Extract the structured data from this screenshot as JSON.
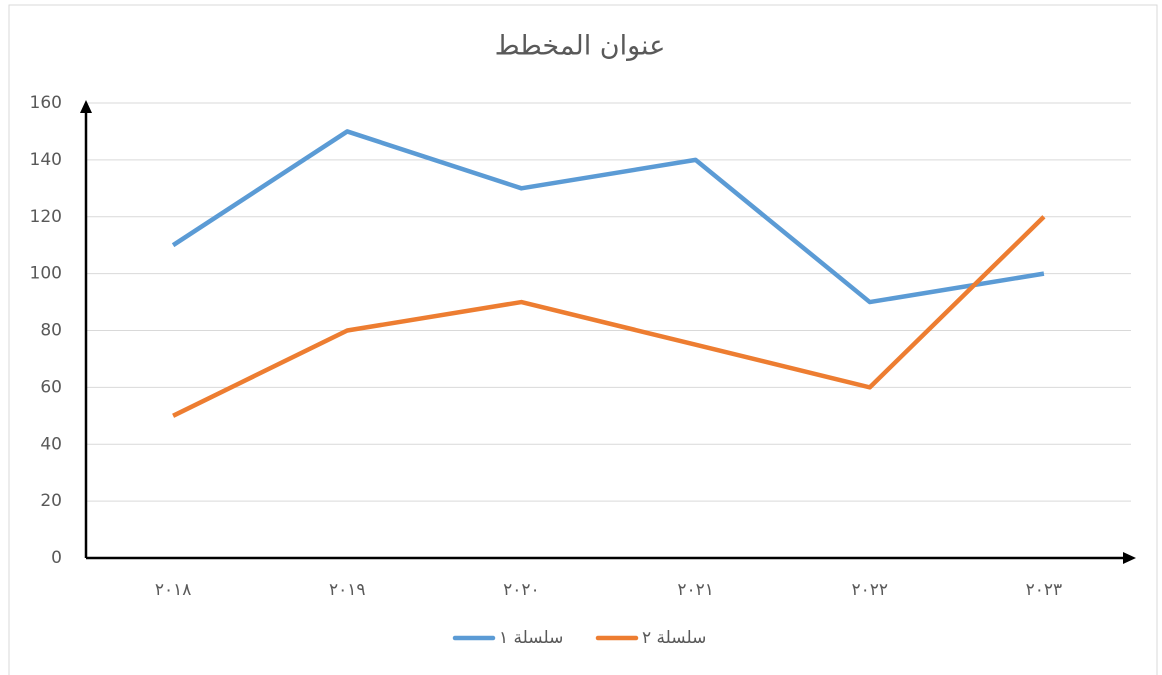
{
  "chart_data": {
    "type": "line",
    "title": "عنوان المخطط",
    "categories": [
      "٢٠١٨",
      "٢٠١٩",
      "٢٠٢٠",
      "٢٠٢١",
      "٢٠٢٢",
      "٢٠٢٣"
    ],
    "series": [
      {
        "name": "سلسلة ١",
        "color": "#5b9bd5",
        "values": [
          110,
          150,
          130,
          140,
          90,
          100
        ]
      },
      {
        "name": "سلسلة ٢",
        "color": "#ed7d31",
        "values": [
          50,
          80,
          90,
          75,
          60,
          120
        ]
      }
    ],
    "ylim": [
      0,
      160
    ],
    "yticks": [
      0,
      20,
      40,
      60,
      80,
      100,
      120,
      140,
      160
    ],
    "grid": true,
    "legend": "bottom"
  }
}
